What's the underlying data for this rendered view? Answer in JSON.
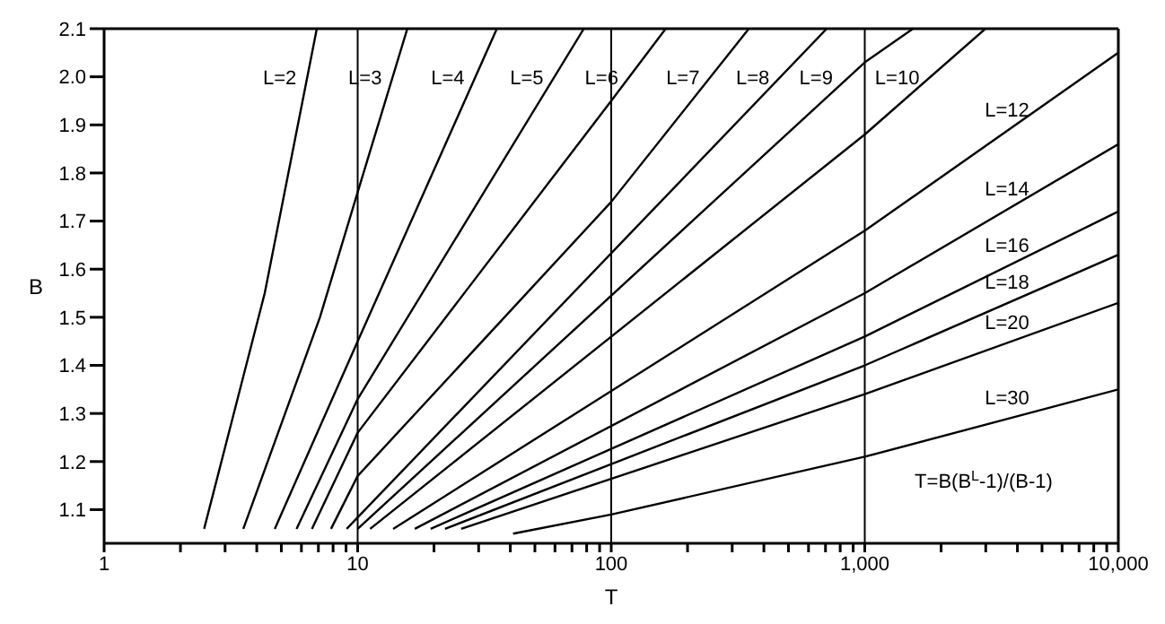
{
  "chart_data": {
    "type": "line",
    "xlabel": "T",
    "ylabel": "B",
    "log": "x",
    "marker": "none",
    "line_style": "solid",
    "legend": false,
    "grid": false,
    "xlim": [
      1,
      10000
    ],
    "ylim": [
      1.03,
      2.1
    ],
    "xticks": [
      1,
      {
        "value": 2,
        "label": null
      },
      {
        "value": 3,
        "label": null
      },
      {
        "value": 4,
        "label": null
      },
      {
        "value": 5,
        "label": null
      },
      {
        "value": 6,
        "label": null
      },
      {
        "value": 7,
        "label": null
      },
      {
        "value": 8,
        "label": null
      },
      {
        "value": 9,
        "label": null
      },
      10,
      {
        "value": 20,
        "label": null
      },
      {
        "value": 30,
        "label": null
      },
      {
        "value": 40,
        "label": null
      },
      {
        "value": 50,
        "label": null
      },
      {
        "value": 60,
        "label": null
      },
      {
        "value": 70,
        "label": null
      },
      {
        "value": 80,
        "label": null
      },
      {
        "value": 90,
        "label": null
      },
      100,
      {
        "value": 200,
        "label": null
      },
      {
        "value": 300,
        "label": null
      },
      {
        "value": 400,
        "label": null
      },
      {
        "value": 500,
        "label": null
      },
      {
        "value": 600,
        "label": null
      },
      {
        "value": 700,
        "label": null
      },
      {
        "value": 800,
        "label": null
      },
      {
        "value": 900,
        "label": null
      },
      {
        "value": 1000,
        "label": "1,000"
      },
      {
        "value": 2000,
        "label": null
      },
      {
        "value": 3000,
        "label": null
      },
      {
        "value": 4000,
        "label": null
      },
      {
        "value": 5000,
        "label": null
      },
      {
        "value": 6000,
        "label": null
      },
      {
        "value": 7000,
        "label": null
      },
      {
        "value": 8000,
        "label": null
      },
      {
        "value": 9000,
        "label": null
      },
      {
        "value": 10000,
        "label": "10,000"
      }
    ],
    "yticks": [
      1.1,
      1.2,
      1.3,
      1.4,
      1.5,
      1.6,
      1.7,
      1.8,
      1.9,
      {
        "value": 2,
        "label": "2.0"
      },
      2.1
    ],
    "ref_lines": [
      {
        "axis": "x",
        "value": 10,
        "color": "#000000"
      },
      {
        "axis": "x",
        "value": 100,
        "color": "#000000"
      },
      {
        "axis": "x",
        "value": 1000,
        "color": "#000000"
      }
    ],
    "series": [
      {
        "name": "L=2",
        "color": "#000000",
        "x": [
          2.48,
          4.3,
          6.9
        ],
        "values": [
          1.06,
          1.55,
          2.1
        ]
      },
      {
        "name": "L=3",
        "color": "#000000",
        "x": [
          3.54,
          7.1,
          10,
          15.7
        ],
        "values": [
          1.06,
          1.5,
          1.76,
          2.1
        ]
      },
      {
        "name": "L=4",
        "color": "#000000",
        "x": [
          4.71,
          10,
          35.4
        ],
        "values": [
          1.06,
          1.45,
          2.1
        ]
      },
      {
        "name": "L=5",
        "color": "#000000",
        "x": [
          5.74,
          10,
          78
        ],
        "values": [
          1.06,
          1.33,
          2.1
        ]
      },
      {
        "name": "L=6",
        "color": "#000000",
        "x": [
          6.6,
          10,
          100,
          164
        ],
        "values": [
          1.06,
          1.26,
          1.95,
          2.1
        ]
      },
      {
        "name": "L=7",
        "color": "#000000",
        "x": [
          7.85,
          10,
          100,
          349
        ],
        "values": [
          1.06,
          1.17,
          1.74,
          2.1
        ]
      },
      {
        "name": "L=8",
        "color": "#000000",
        "x": [
          9.05,
          708
        ],
        "values": [
          1.06,
          2.1
        ]
      },
      {
        "name": "L=9",
        "color": "#000000",
        "x": [
          10,
          1000,
          1550
        ],
        "values": [
          1.06,
          2.03,
          2.1
        ]
      },
      {
        "name": "L=10",
        "color": "#000000",
        "x": [
          11.2,
          1000,
          2990
        ],
        "values": [
          1.06,
          1.88,
          2.1
        ]
      },
      {
        "name": "L=12",
        "color": "#000000",
        "x": [
          13.8,
          1000,
          10000
        ],
        "values": [
          1.06,
          1.68,
          2.05
        ]
      },
      {
        "name": "L=14",
        "color": "#000000",
        "x": [
          16.8,
          1000,
          10000
        ],
        "values": [
          1.06,
          1.55,
          1.86
        ]
      },
      {
        "name": "L=16",
        "color": "#000000",
        "x": [
          19.4,
          1000,
          10000
        ],
        "values": [
          1.06,
          1.46,
          1.72
        ]
      },
      {
        "name": "L=18",
        "color": "#000000",
        "x": [
          22.1,
          1000,
          10000
        ],
        "values": [
          1.06,
          1.4,
          1.63
        ]
      },
      {
        "name": "L=20",
        "color": "#000000",
        "x": [
          25.6,
          1000,
          10000
        ],
        "values": [
          1.06,
          1.34,
          1.53
        ]
      },
      {
        "name": "L=30",
        "color": "#000000",
        "x": [
          41,
          100,
          1000,
          10000
        ],
        "values": [
          1.05,
          1.09,
          1.21,
          1.35
        ]
      }
    ],
    "annotations": [
      "T=B(B$^{L}$-1)/(B-1)"
    ]
  }
}
